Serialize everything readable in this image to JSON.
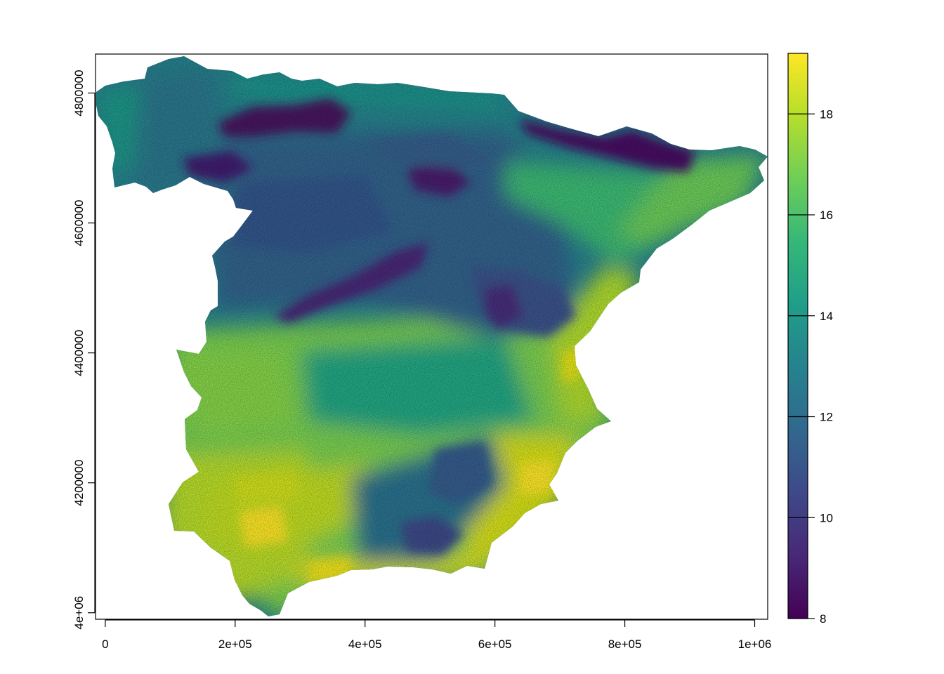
{
  "map": {
    "title": "",
    "x_axis": {
      "range": [
        -15000,
        1020000
      ],
      "ticks": [
        0,
        200000,
        400000,
        600000,
        800000,
        1000000
      ],
      "tick_labels": [
        "0",
        "2e+05",
        "4e+05",
        "6e+05",
        "8e+05",
        "1e+06"
      ]
    },
    "y_axis": {
      "range": [
        3990000,
        4860000
      ],
      "ticks": [
        4000000,
        4200000,
        4400000,
        4600000,
        4800000
      ],
      "tick_labels": [
        "4e+06",
        "4200000",
        "4400000",
        "4600000",
        "4800000"
      ]
    },
    "region": "Iberian Peninsula (Spain mainland)",
    "legend": {
      "type": "continuous colour bar",
      "position": "right",
      "min": 8,
      "max": 19.2,
      "ticks": [
        8,
        10,
        12,
        14,
        16,
        18
      ],
      "tick_labels": [
        "8",
        "10",
        "12",
        "14",
        "16",
        "18"
      ],
      "palette": [
        "#440154",
        "#482878",
        "#3e4989",
        "#31688e",
        "#26828e",
        "#1f9e89",
        "#35b779",
        "#6ece58",
        "#b5de2b",
        "#fde725"
      ]
    }
  },
  "chart_data": {
    "type": "heatmap",
    "title": "",
    "xlabel": "",
    "ylabel": "",
    "xlim": [
      -15000,
      1020000
    ],
    "ylim": [
      3990000,
      4860000
    ],
    "value_range": [
      8,
      19.2
    ],
    "note_values": "raster values estimated by region from colour",
    "region_values": [
      {
        "area": "Galicia / NW coast",
        "value": 14
      },
      {
        "area": "Cantabrian mountains",
        "value": 8.5
      },
      {
        "area": "Northern plateau",
        "value": 11
      },
      {
        "area": "Pyrenees",
        "value": 8.5
      },
      {
        "area": "Iberian system",
        "value": 9.5
      },
      {
        "area": "Central system",
        "value": 9
      },
      {
        "area": "Southern plateau",
        "value": 14.5
      },
      {
        "area": "Ebro valley / Catalonia",
        "value": 16
      },
      {
        "area": "Valencia coast",
        "value": 17.5
      },
      {
        "area": "Murcia coast",
        "value": 18.5
      },
      {
        "area": "Guadalquivir valley",
        "value": 18.5
      },
      {
        "area": "Sierra Nevada / Betic",
        "value": 11
      },
      {
        "area": "Southern coast",
        "value": 18.5
      }
    ]
  }
}
